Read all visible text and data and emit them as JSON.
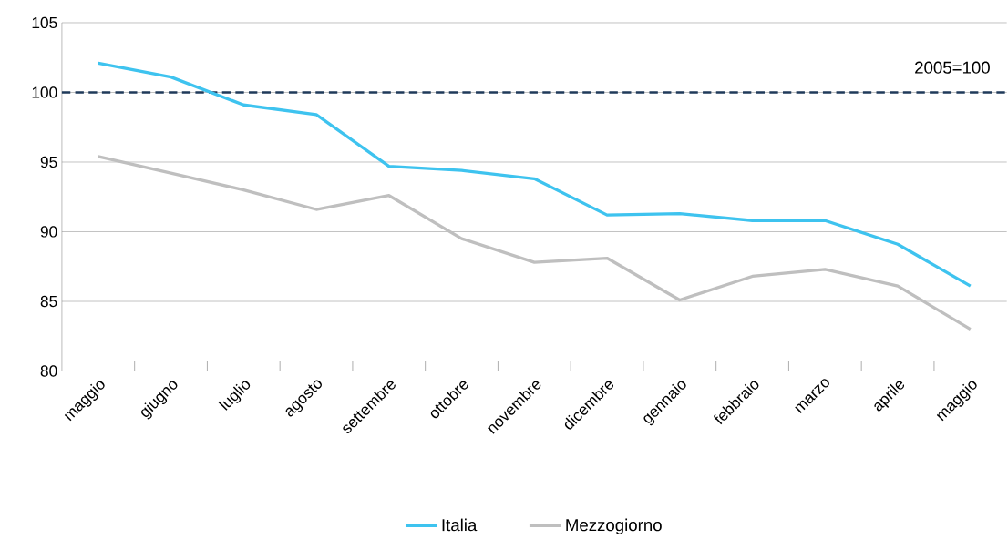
{
  "chart_data": {
    "type": "line",
    "categories": [
      "maggio",
      "giugno",
      "luglio",
      "agosto",
      "settembre",
      "ottobre",
      "novembre",
      "dicembre",
      "gennaio",
      "febbraio",
      "marzo",
      "aprile",
      "maggio"
    ],
    "series": [
      {
        "name": "Italia",
        "color": "#3ec3ef",
        "values": [
          102.1,
          101.1,
          99.1,
          98.4,
          94.7,
          94.4,
          93.8,
          91.2,
          91.3,
          90.8,
          90.8,
          89.1,
          86.1
        ]
      },
      {
        "name": "Mezzogiorno",
        "color": "#bfbfbf",
        "values": [
          95.4,
          94.2,
          93.0,
          91.6,
          92.6,
          89.5,
          87.8,
          88.1,
          85.1,
          86.8,
          87.3,
          86.1,
          83.0
        ]
      }
    ],
    "ylim": [
      80,
      105
    ],
    "yticks": [
      80,
      85,
      90,
      95,
      100,
      105
    ],
    "ref_lines": [
      {
        "axis": "y",
        "value": 100,
        "label": "2005=100",
        "color": "#1f3a5a",
        "line_style": "dashed"
      }
    ],
    "grid": "y",
    "legend": "bottom",
    "marker": "none",
    "line_style": "solid"
  }
}
